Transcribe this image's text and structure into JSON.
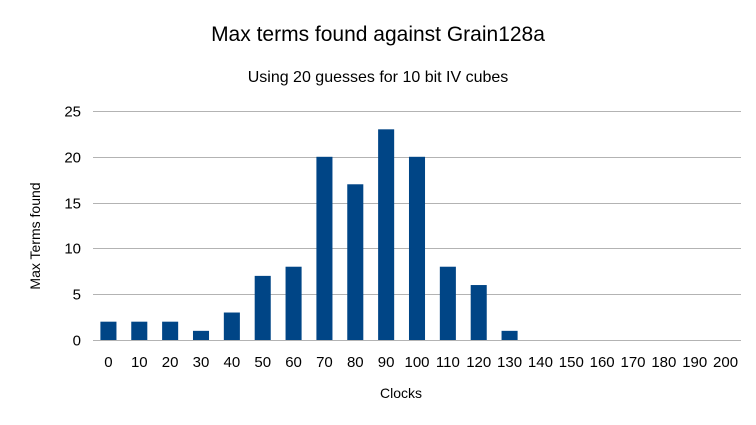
{
  "chart_data": {
    "type": "bar",
    "title": "Max terms found against Grain128a",
    "subtitle": "Using 20 guesses for 10 bit IV cubes",
    "xlabel": "Clocks",
    "ylabel": "Max Terms found",
    "categories": [
      "0",
      "10",
      "20",
      "30",
      "40",
      "50",
      "60",
      "70",
      "80",
      "90",
      "100",
      "110",
      "120",
      "130",
      "140",
      "150",
      "160",
      "170",
      "180",
      "190",
      "200"
    ],
    "values": [
      2,
      2,
      2,
      1,
      3,
      7,
      8,
      20,
      17,
      23,
      20,
      8,
      6,
      1,
      0,
      0,
      0,
      0,
      0,
      0,
      0
    ],
    "ylim": [
      0,
      25
    ],
    "yticks": [
      "0",
      "5",
      "10",
      "15",
      "20",
      "25"
    ],
    "ytick_values": [
      0,
      5,
      10,
      15,
      20,
      25
    ],
    "grid": true,
    "legend": "none",
    "bar_color": "#004586",
    "grid_color": "#b3b3b3"
  }
}
